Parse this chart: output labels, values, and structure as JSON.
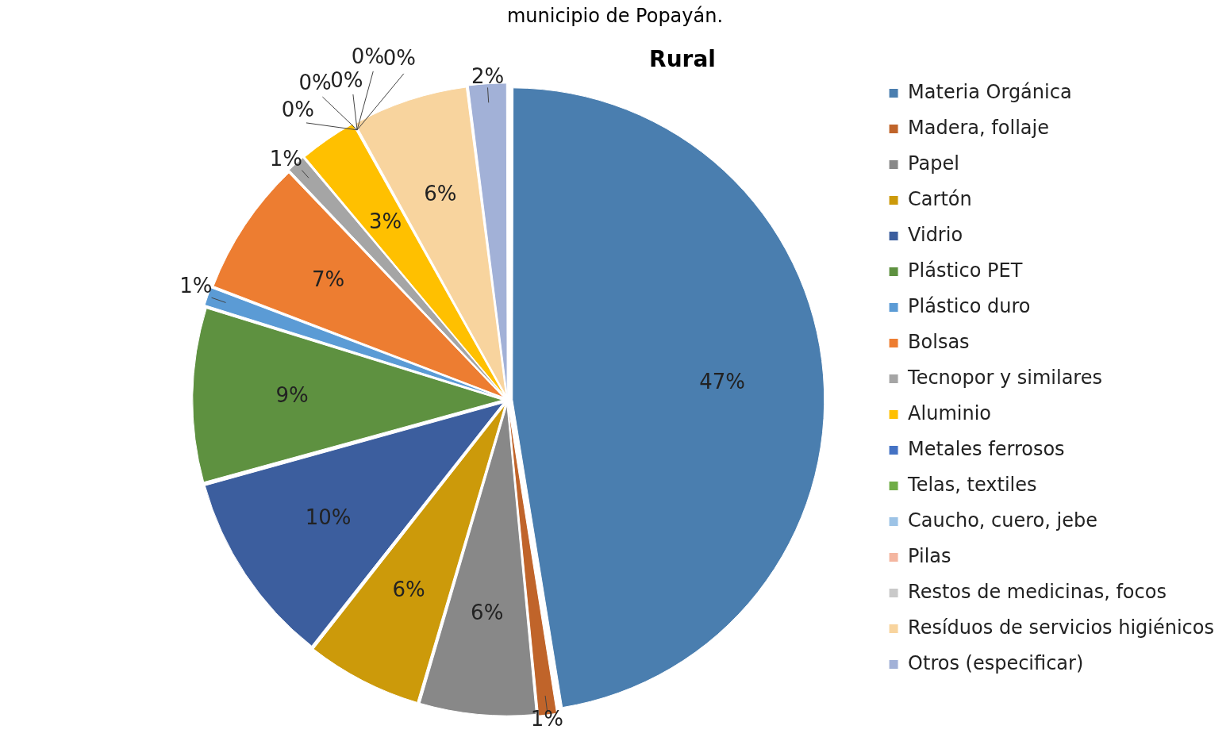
{
  "chart_data": {
    "type": "pie",
    "title": "Rural",
    "annotations": [
      "municipio de Popayán."
    ],
    "categories": [
      "Materia Orgánica",
      "Madera, follaje",
      "Papel",
      "Cartón",
      "Vidrio",
      "Plástico PET",
      "Plástico duro",
      "Bolsas",
      "Tecnopor y similares",
      "Aluminio",
      "Metales ferrosos",
      "Telas, textiles",
      "Caucho, cuero, jebe",
      "Pilas",
      "Restos de medicinas, focos",
      "Resíduos de servicios higiénicos",
      "Otros (especificar)"
    ],
    "values": [
      47,
      1,
      6,
      6,
      10,
      9,
      1,
      7,
      1,
      3,
      0,
      0,
      0,
      0,
      0,
      6,
      2
    ],
    "value_labels": [
      "47%",
      "1%",
      "6%",
      "6%",
      "10%",
      "9%",
      "1%",
      "7%",
      "1%",
      "3%",
      "0%",
      "0%",
      "0%",
      "0%",
      "0%",
      "6%",
      "2%"
    ],
    "colors": [
      "#4a7eaf",
      "#c0642a",
      "#888888",
      "#cc9a0a",
      "#3c5e9e",
      "#5e9140",
      "#5b9bd5",
      "#ed7d31",
      "#a5a5a5",
      "#ffc000",
      "#4472c4",
      "#70ad47",
      "#9dc3e6",
      "#f4b6a0",
      "#c9c9c9",
      "#f8d49e",
      "#a2b1d7"
    ],
    "legend": "right"
  }
}
